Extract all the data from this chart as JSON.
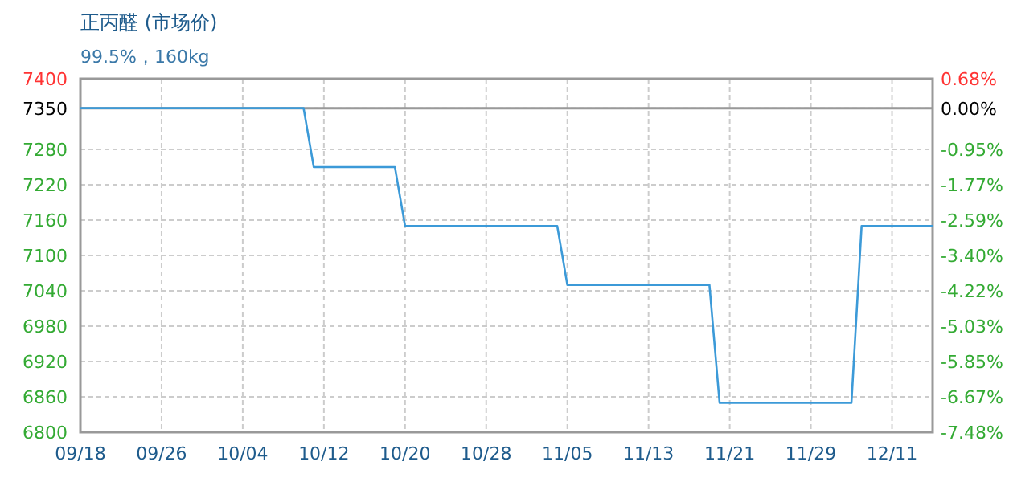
{
  "chart_data": {
    "type": "line",
    "title": "正丙醛 (市场价)",
    "subtitle": "99.5%，160kg",
    "categories": [
      "09/18",
      null,
      null,
      null,
      null,
      null,
      null,
      null,
      "09/26",
      null,
      null,
      null,
      null,
      null,
      null,
      null,
      "10/04",
      null,
      null,
      null,
      null,
      null,
      null,
      null,
      "10/12",
      null,
      null,
      null,
      null,
      null,
      null,
      null,
      "10/20",
      null,
      null,
      null,
      null,
      null,
      null,
      null,
      "10/28",
      null,
      null,
      null,
      null,
      null,
      null,
      null,
      "11/05",
      null,
      null,
      null,
      null,
      null,
      null,
      null,
      "11/13",
      null,
      null,
      null,
      null,
      null,
      null,
      null,
      "11/21",
      null,
      null,
      null,
      null,
      null,
      null,
      null,
      "11/29",
      null,
      null,
      null,
      null,
      null,
      null,
      null,
      "12/11",
      null,
      null,
      null,
      null
    ],
    "series": [
      {
        "color": "#3c9ad8",
        "values": [
          7350,
          7350,
          7350,
          7350,
          7350,
          7350,
          7350,
          7350,
          7350,
          7350,
          7350,
          7350,
          7350,
          7350,
          7350,
          7350,
          7350,
          7350,
          7350,
          7350,
          7350,
          7350,
          7350,
          7250,
          7250,
          7250,
          7250,
          7250,
          7250,
          7250,
          7250,
          7250,
          7150,
          7150,
          7150,
          7150,
          7150,
          7150,
          7150,
          7150,
          7150,
          7150,
          7150,
          7150,
          7150,
          7150,
          7150,
          7150,
          7050,
          7050,
          7050,
          7050,
          7050,
          7050,
          7050,
          7050,
          7050,
          7050,
          7050,
          7050,
          7050,
          7050,
          7050,
          6850,
          6850,
          6850,
          6850,
          6850,
          6850,
          6850,
          6850,
          6850,
          6850,
          6850,
          6850,
          6850,
          6850,
          7150,
          7150,
          7150,
          7150,
          7150,
          7150,
          7150,
          7150
        ]
      }
    ],
    "ylim": [
      6800,
      7400
    ],
    "yticks": [
      6800,
      6860,
      6920,
      6980,
      7040,
      7100,
      7160,
      7220,
      7280,
      7350,
      7400
    ],
    "y2lim": [
      -7.48,
      0.68
    ],
    "y2ticks": [
      {
        "value": -7.48,
        "label": "-7.48%"
      },
      {
        "value": -6.67,
        "label": "-6.67%"
      },
      {
        "value": -5.85,
        "label": "-5.85%"
      },
      {
        "value": -5.03,
        "label": "-5.03%"
      },
      {
        "value": -4.22,
        "label": "-4.22%"
      },
      {
        "value": -3.4,
        "label": "-3.40%"
      },
      {
        "value": -2.59,
        "label": "-2.59%"
      },
      {
        "value": -1.77,
        "label": "-1.77%"
      },
      {
        "value": -0.95,
        "label": "-0.95%"
      },
      {
        "value": 0,
        "label": "0.00%"
      },
      {
        "value": 0.68,
        "label": "0.68%"
      }
    ],
    "ref_lines": [
      {
        "axis": "y",
        "value": 7350,
        "color": "#999999"
      }
    ],
    "grid": true,
    "marker": "none",
    "line_style": "solid"
  }
}
